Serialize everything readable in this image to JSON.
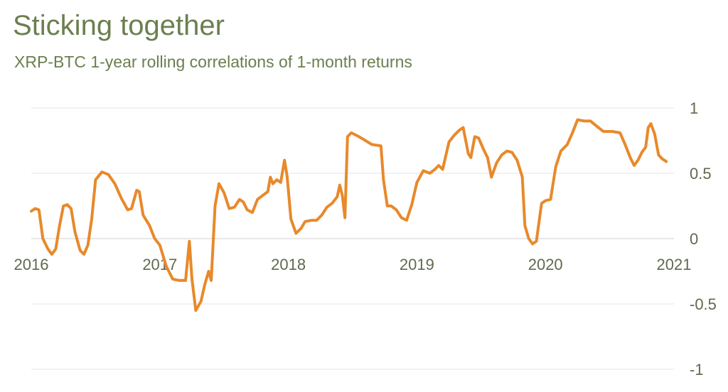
{
  "header": {
    "title": "Sticking together",
    "subtitle": "XRP-BTC 1-year rolling correlations of 1-month returns"
  },
  "colors": {
    "line": "#e8892b",
    "text": "#6b7f4f",
    "grid": "#e6e6e6"
  },
  "chart_data": {
    "type": "line",
    "title": "Sticking together",
    "subtitle": "XRP-BTC 1-year rolling correlations of 1-month returns",
    "xlabel": "",
    "ylabel": "",
    "xlim": [
      2016.0,
      2021.0
    ],
    "ylim": [
      -1,
      1
    ],
    "x_ticks": [
      "2016",
      "2017",
      "2018",
      "2019",
      "2020",
      "2021"
    ],
    "y_ticks": [
      "1",
      "0.5",
      "0",
      "-0.5",
      "-1"
    ],
    "grid": true,
    "legend": "none",
    "series": [
      {
        "name": "",
        "points": [
          [
            2016.0,
            0.21
          ],
          [
            2016.03,
            0.23
          ],
          [
            2016.06,
            0.22
          ],
          [
            2016.09,
            0.0
          ],
          [
            2016.13,
            -0.08
          ],
          [
            2016.16,
            -0.12
          ],
          [
            2016.19,
            -0.08
          ],
          [
            2016.22,
            0.1
          ],
          [
            2016.25,
            0.25
          ],
          [
            2016.28,
            0.26
          ],
          [
            2016.31,
            0.23
          ],
          [
            2016.34,
            0.05
          ],
          [
            2016.38,
            -0.09
          ],
          [
            2016.41,
            -0.12
          ],
          [
            2016.44,
            -0.05
          ],
          [
            2016.47,
            0.15
          ],
          [
            2016.5,
            0.45
          ],
          [
            2016.55,
            0.51
          ],
          [
            2016.6,
            0.49
          ],
          [
            2016.65,
            0.42
          ],
          [
            2016.7,
            0.31
          ],
          [
            2016.75,
            0.22
          ],
          [
            2016.78,
            0.23
          ],
          [
            2016.82,
            0.37
          ],
          [
            2016.84,
            0.36
          ],
          [
            2016.87,
            0.18
          ],
          [
            2016.92,
            0.1
          ],
          [
            2016.96,
            0.0
          ],
          [
            2017.0,
            -0.05
          ],
          [
            2017.05,
            -0.21
          ],
          [
            2017.1,
            -0.31
          ],
          [
            2017.15,
            -0.32
          ],
          [
            2017.2,
            -0.32
          ],
          [
            2017.23,
            -0.02
          ],
          [
            2017.25,
            -0.31
          ],
          [
            2017.28,
            -0.55
          ],
          [
            2017.32,
            -0.48
          ],
          [
            2017.35,
            -0.35
          ],
          [
            2017.38,
            -0.25
          ],
          [
            2017.4,
            -0.32
          ],
          [
            2017.43,
            0.25
          ],
          [
            2017.46,
            0.42
          ],
          [
            2017.5,
            0.35
          ],
          [
            2017.54,
            0.23
          ],
          [
            2017.58,
            0.24
          ],
          [
            2017.62,
            0.3
          ],
          [
            2017.65,
            0.28
          ],
          [
            2017.68,
            0.22
          ],
          [
            2017.72,
            0.2
          ],
          [
            2017.76,
            0.3
          ],
          [
            2017.8,
            0.33
          ],
          [
            2017.84,
            0.36
          ],
          [
            2017.86,
            0.47
          ],
          [
            2017.88,
            0.42
          ],
          [
            2017.91,
            0.45
          ],
          [
            2017.94,
            0.43
          ],
          [
            2017.97,
            0.6
          ],
          [
            2017.99,
            0.48
          ],
          [
            2018.02,
            0.15
          ],
          [
            2018.06,
            0.04
          ],
          [
            2018.1,
            0.08
          ],
          [
            2018.13,
            0.13
          ],
          [
            2018.18,
            0.14
          ],
          [
            2018.22,
            0.14
          ],
          [
            2018.26,
            0.18
          ],
          [
            2018.3,
            0.24
          ],
          [
            2018.34,
            0.27
          ],
          [
            2018.38,
            0.32
          ],
          [
            2018.4,
            0.41
          ],
          [
            2018.42,
            0.33
          ],
          [
            2018.44,
            0.16
          ],
          [
            2018.46,
            0.78
          ],
          [
            2018.49,
            0.81
          ],
          [
            2018.55,
            0.78
          ],
          [
            2018.6,
            0.75
          ],
          [
            2018.65,
            0.72
          ],
          [
            2018.72,
            0.71
          ],
          [
            2018.74,
            0.45
          ],
          [
            2018.77,
            0.25
          ],
          [
            2018.8,
            0.25
          ],
          [
            2018.84,
            0.22
          ],
          [
            2018.88,
            0.16
          ],
          [
            2018.92,
            0.14
          ],
          [
            2018.96,
            0.26
          ],
          [
            2019.0,
            0.43
          ],
          [
            2019.05,
            0.52
          ],
          [
            2019.1,
            0.5
          ],
          [
            2019.14,
            0.53
          ],
          [
            2019.17,
            0.56
          ],
          [
            2019.2,
            0.53
          ],
          [
            2019.25,
            0.74
          ],
          [
            2019.29,
            0.79
          ],
          [
            2019.33,
            0.83
          ],
          [
            2019.36,
            0.85
          ],
          [
            2019.4,
            0.65
          ],
          [
            2019.42,
            0.62
          ],
          [
            2019.45,
            0.78
          ],
          [
            2019.48,
            0.77
          ],
          [
            2019.52,
            0.68
          ],
          [
            2019.55,
            0.62
          ],
          [
            2019.58,
            0.47
          ],
          [
            2019.62,
            0.58
          ],
          [
            2019.66,
            0.64
          ],
          [
            2019.7,
            0.67
          ],
          [
            2019.74,
            0.66
          ],
          [
            2019.78,
            0.6
          ],
          [
            2019.82,
            0.47
          ],
          [
            2019.84,
            0.1
          ],
          [
            2019.87,
            0.0
          ],
          [
            2019.9,
            -0.04
          ],
          [
            2019.93,
            -0.02
          ],
          [
            2019.97,
            0.27
          ],
          [
            2020.0,
            0.29
          ],
          [
            2020.04,
            0.3
          ],
          [
            2020.08,
            0.55
          ],
          [
            2020.12,
            0.67
          ],
          [
            2020.17,
            0.72
          ],
          [
            2020.21,
            0.81
          ],
          [
            2020.25,
            0.91
          ],
          [
            2020.3,
            0.9
          ],
          [
            2020.35,
            0.9
          ],
          [
            2020.4,
            0.86
          ],
          [
            2020.45,
            0.82
          ],
          [
            2020.52,
            0.82
          ],
          [
            2020.58,
            0.81
          ],
          [
            2020.62,
            0.72
          ],
          [
            2020.66,
            0.62
          ],
          [
            2020.69,
            0.56
          ],
          [
            2020.72,
            0.6
          ],
          [
            2020.75,
            0.66
          ],
          [
            2020.78,
            0.7
          ],
          [
            2020.8,
            0.85
          ],
          [
            2020.82,
            0.88
          ],
          [
            2020.85,
            0.8
          ],
          [
            2020.88,
            0.64
          ],
          [
            2020.91,
            0.61
          ],
          [
            2020.94,
            0.59
          ]
        ]
      }
    ]
  }
}
